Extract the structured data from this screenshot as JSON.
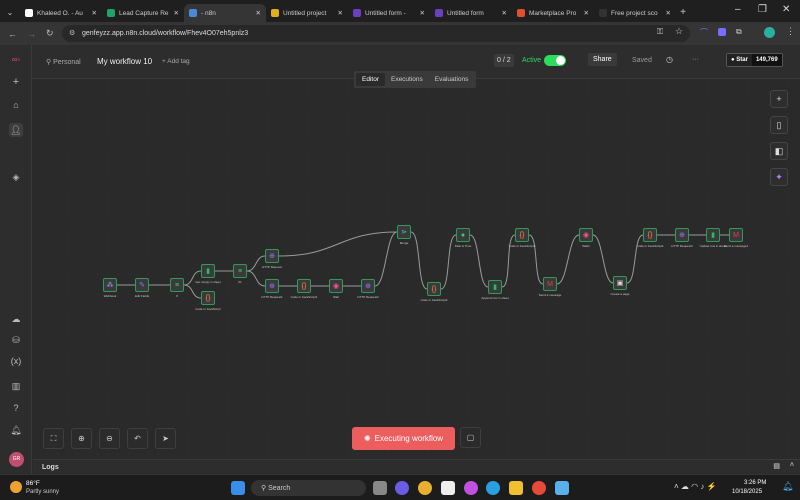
{
  "browser": {
    "tabs": [
      {
        "title": "Khaleed O. - Au",
        "color": "#ffffff"
      },
      {
        "title": "Lead Capture Re",
        "color": "#1fa463"
      },
      {
        "title": "- n8n",
        "color": "#4a8bd8",
        "active": true
      },
      {
        "title": "Untitled project",
        "color": "#e0b020"
      },
      {
        "title": "Untitled form - ",
        "color": "#6a3fc0"
      },
      {
        "title": "Untitled form",
        "color": "#6a3fc0"
      },
      {
        "title": "Marketplace Pro",
        "color": "#e05030"
      },
      {
        "title": "Free project sco",
        "color": "#333333"
      }
    ],
    "new_tab": "+",
    "url": "genfeyzz.app.n8n.cloud/workflow/Fhev4O07eh5pnlz3"
  },
  "header": {
    "project": "Personal",
    "workflow_name": "My workflow 10",
    "add_tag": "+ Add tag",
    "counter": "0 / 2",
    "active_label": "Active",
    "active": true,
    "share": "Share",
    "saved": "Saved",
    "more": "···",
    "star": "Star",
    "star_count": "149,769"
  },
  "tabs": {
    "editor": "Editor",
    "executions": "Executions",
    "evaluations": "Evaluations"
  },
  "nodes": [
    {
      "id": "webhook",
      "label": "Webhook",
      "icon": "⁂",
      "color": "#a0a0ff"
    },
    {
      "id": "edit",
      "label": "Edit Fields",
      "icon": "✎",
      "color": "#8080ff"
    },
    {
      "id": "if",
      "label": "If",
      "icon": "≡",
      "color": "#3ad07a"
    },
    {
      "id": "getrow",
      "label": "Get row(s) in sheet",
      "icon": "▮",
      "color": "#20c060"
    },
    {
      "id": "code0",
      "label": "Code in JavaScript",
      "icon": "{}",
      "color": "#ff9040"
    },
    {
      "id": "if1",
      "label": "If1",
      "icon": "≡",
      "color": "#3ad07a"
    },
    {
      "id": "http",
      "label": "HTTP Request",
      "icon": "⊕",
      "color": "#8a7cff"
    },
    {
      "id": "http1",
      "label": "HTTP Request1",
      "icon": "⊕",
      "color": "#8a7cff"
    },
    {
      "id": "code1",
      "label": "Code in JavaScript1",
      "icon": "{}",
      "color": "#ff9040"
    },
    {
      "id": "wait",
      "label": "Wait",
      "icon": "◉",
      "color": "#ff5090"
    },
    {
      "id": "http2",
      "label": "HTTP Request2",
      "icon": "⊕",
      "color": "#8a7cff"
    },
    {
      "id": "merge",
      "label": "Merge",
      "icon": "⋗",
      "color": "#40c0d0"
    },
    {
      "id": "code2",
      "label": "Code in JavaScript2",
      "icon": "{}",
      "color": "#ff9040"
    },
    {
      "id": "date",
      "label": "Date & Time",
      "icon": "●",
      "color": "#30d080"
    },
    {
      "id": "append",
      "label": "Append row in sheet",
      "icon": "▮",
      "color": "#20c060"
    },
    {
      "id": "code3",
      "label": "Code in JavaScript3",
      "icon": "{}",
      "color": "#ff9040"
    },
    {
      "id": "send",
      "label": "Send a message",
      "icon": "M",
      "color": "#e04040"
    },
    {
      "id": "wait1",
      "label": "Wait1",
      "icon": "◉",
      "color": "#ff5090"
    },
    {
      "id": "page",
      "label": "Create a page",
      "icon": "▣",
      "color": "#dddddd"
    },
    {
      "id": "code4",
      "label": "Code in JavaScript4",
      "icon": "{}",
      "color": "#ff9040"
    },
    {
      "id": "http3",
      "label": "HTTP Request3",
      "icon": "⊕",
      "color": "#8a7cff"
    },
    {
      "id": "update",
      "label": "Update row in sheet",
      "icon": "▮",
      "color": "#20c060"
    },
    {
      "id": "send1",
      "label": "Send a message1",
      "icon": "M",
      "color": "#e04040"
    }
  ],
  "canvas_controls": {
    "execute": "Executing workflow"
  },
  "logs": {
    "label": "Logs"
  },
  "taskbar": {
    "temp": "86°F",
    "weather": "Partly sunny",
    "search": "Search",
    "time": "3:26 PM",
    "date": "10/18/2025"
  },
  "colors": {
    "accent": "#ea4b71",
    "execute": "#ee5d5d",
    "active": "#2ddc5a"
  }
}
